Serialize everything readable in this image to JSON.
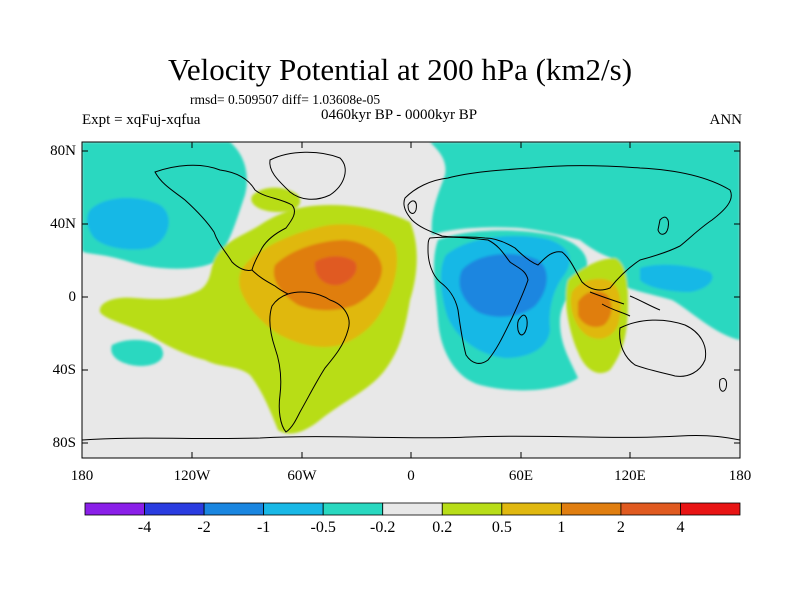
{
  "figure": {
    "title": "Velocity Potential at 200 hPa (km2/s)",
    "stats": "rmsd= 0.509507 diff= 1.03608e-05",
    "experiment": "Expt = xqFuj-xqfua",
    "period": "0460kyr BP - 0000kyr BP",
    "season": "ANN"
  },
  "map": {
    "projection": "cylindrical-equidistant",
    "lat_labels": [
      "80N",
      "40N",
      "0",
      "40S",
      "80S"
    ],
    "lon_labels": [
      "180",
      "120W",
      "60W",
      "0",
      "60E",
      "120E",
      "180"
    ],
    "land_outline_color": "#000000",
    "background_color": "#e8e8e8"
  },
  "colorbar": {
    "labels": [
      "-4",
      "-2",
      "-1",
      "-0.5",
      "-0.2",
      "0.2",
      "0.5",
      "1",
      "2",
      "4"
    ],
    "colors": [
      "#8a1fe8",
      "#2a3ce0",
      "#1a86e0",
      "#19b8e6",
      "#29d8c0",
      "#e8e8e8",
      "#b8dd18",
      "#e0b810",
      "#e07e10",
      "#e05a20",
      "#e81414"
    ]
  }
}
